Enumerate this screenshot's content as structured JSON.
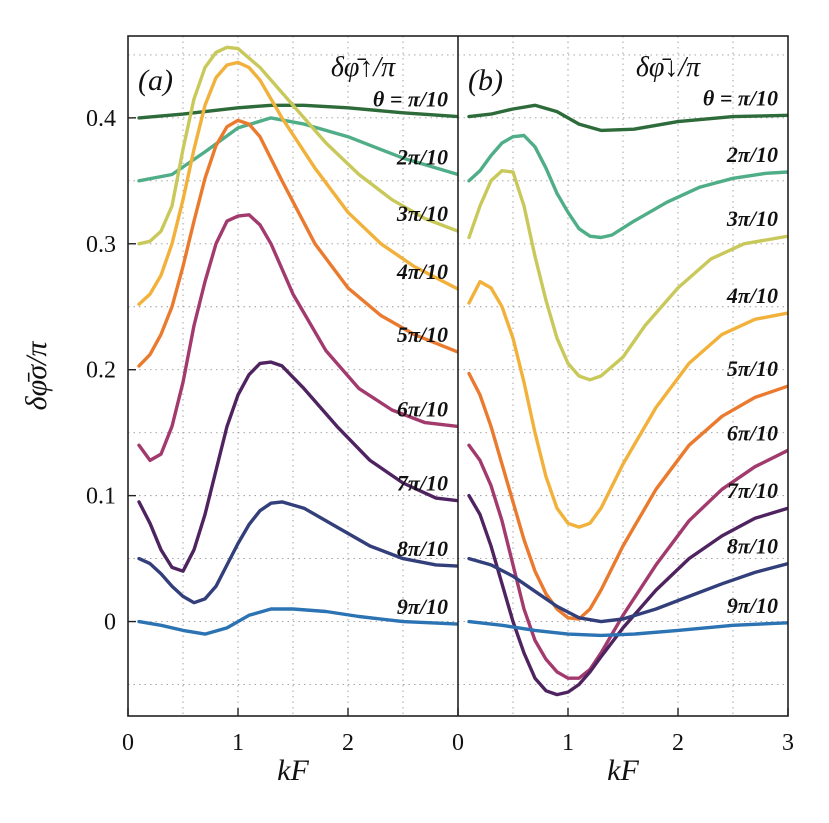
{
  "chart_data": [
    {
      "panel": "(a)",
      "type": "line",
      "title": "δφ̄↑/π",
      "xlabel": "kF",
      "ylabel": "δφ̄σ/π",
      "xlim": [
        0,
        3
      ],
      "ylim": [
        -0.075,
        0.465
      ],
      "xticks": [
        "0",
        "1",
        "2"
      ],
      "yticks": [
        "0",
        "0.1",
        "0.2",
        "0.3",
        "0.4"
      ],
      "grid": true,
      "series": [
        {
          "name": "θ = π/10",
          "color": "#2e6b3a",
          "x": [
            0.1,
            0.5,
            1.0,
            1.3,
            1.6,
            2.0,
            2.5,
            3.0
          ],
          "y": [
            0.4,
            0.403,
            0.408,
            0.41,
            0.41,
            0.408,
            0.404,
            0.401
          ]
        },
        {
          "name": "2π/10",
          "color": "#4fae87",
          "x": [
            0.1,
            0.4,
            0.7,
            1.0,
            1.3,
            1.6,
            2.0,
            2.5,
            3.0
          ],
          "y": [
            0.35,
            0.355,
            0.373,
            0.392,
            0.4,
            0.395,
            0.385,
            0.368,
            0.355
          ]
        },
        {
          "name": "3π/10",
          "color": "#c9c85a",
          "x": [
            0.1,
            0.2,
            0.3,
            0.4,
            0.5,
            0.6,
            0.7,
            0.8,
            0.9,
            1.0,
            1.2,
            1.5,
            1.8,
            2.1,
            2.4,
            2.7,
            3.0
          ],
          "y": [
            0.3,
            0.302,
            0.31,
            0.33,
            0.375,
            0.415,
            0.44,
            0.452,
            0.456,
            0.455,
            0.44,
            0.41,
            0.38,
            0.355,
            0.335,
            0.32,
            0.31
          ]
        },
        {
          "name": "4π/10",
          "color": "#f1b13a",
          "x": [
            0.1,
            0.2,
            0.3,
            0.4,
            0.5,
            0.6,
            0.7,
            0.8,
            0.9,
            1.0,
            1.1,
            1.2,
            1.4,
            1.7,
            2.0,
            2.3,
            2.6,
            3.0
          ],
          "y": [
            0.252,
            0.26,
            0.275,
            0.3,
            0.335,
            0.375,
            0.41,
            0.432,
            0.442,
            0.444,
            0.44,
            0.43,
            0.4,
            0.36,
            0.325,
            0.3,
            0.282,
            0.264
          ]
        },
        {
          "name": "5π/10",
          "color": "#ea7a2e",
          "x": [
            0.1,
            0.2,
            0.3,
            0.4,
            0.5,
            0.6,
            0.7,
            0.8,
            0.9,
            1.0,
            1.1,
            1.2,
            1.4,
            1.7,
            2.0,
            2.3,
            2.6,
            3.0
          ],
          "y": [
            0.203,
            0.212,
            0.228,
            0.25,
            0.282,
            0.318,
            0.352,
            0.378,
            0.393,
            0.398,
            0.395,
            0.385,
            0.35,
            0.3,
            0.265,
            0.243,
            0.228,
            0.214
          ]
        },
        {
          "name": "6π/10",
          "color": "#a23a6e",
          "x": [
            0.1,
            0.2,
            0.3,
            0.4,
            0.5,
            0.6,
            0.7,
            0.8,
            0.9,
            1.0,
            1.1,
            1.2,
            1.3,
            1.5,
            1.8,
            2.1,
            2.4,
            2.7,
            3.0
          ],
          "y": [
            0.14,
            0.128,
            0.133,
            0.155,
            0.19,
            0.235,
            0.27,
            0.3,
            0.318,
            0.322,
            0.323,
            0.315,
            0.3,
            0.26,
            0.215,
            0.185,
            0.168,
            0.158,
            0.155
          ]
        },
        {
          "name": "7π/10",
          "color": "#4f2360",
          "x": [
            0.1,
            0.2,
            0.3,
            0.4,
            0.5,
            0.6,
            0.7,
            0.8,
            0.9,
            1.0,
            1.1,
            1.2,
            1.3,
            1.4,
            1.6,
            1.9,
            2.2,
            2.5,
            2.8,
            3.0
          ],
          "y": [
            0.095,
            0.078,
            0.057,
            0.043,
            0.04,
            0.057,
            0.085,
            0.12,
            0.155,
            0.18,
            0.196,
            0.205,
            0.206,
            0.203,
            0.185,
            0.155,
            0.128,
            0.11,
            0.098,
            0.096
          ]
        },
        {
          "name": "8π/10",
          "color": "#323f7b",
          "x": [
            0.1,
            0.2,
            0.3,
            0.4,
            0.5,
            0.6,
            0.7,
            0.8,
            0.9,
            1.0,
            1.1,
            1.2,
            1.3,
            1.4,
            1.6,
            1.9,
            2.2,
            2.5,
            2.8,
            3.0
          ],
          "y": [
            0.05,
            0.046,
            0.038,
            0.028,
            0.02,
            0.015,
            0.018,
            0.028,
            0.045,
            0.062,
            0.077,
            0.088,
            0.094,
            0.095,
            0.09,
            0.075,
            0.06,
            0.05,
            0.045,
            0.044
          ]
        },
        {
          "name": "9π/10",
          "color": "#2b73b2",
          "x": [
            0.1,
            0.3,
            0.5,
            0.7,
            0.9,
            1.1,
            1.3,
            1.5,
            1.8,
            2.1,
            2.5,
            3.0
          ],
          "y": [
            0.0,
            -0.003,
            -0.007,
            -0.01,
            -0.005,
            0.005,
            0.01,
            0.01,
            0.008,
            0.004,
            0.0,
            -0.002
          ]
        }
      ]
    },
    {
      "panel": "(b)",
      "type": "line",
      "title": "δφ̄↓/π",
      "xlabel": "kF",
      "ylabel": "",
      "xlim": [
        0,
        3
      ],
      "ylim": [
        -0.075,
        0.465
      ],
      "xticks": [
        "0",
        "1",
        "2",
        "3"
      ],
      "grid": true,
      "series": [
        {
          "name": "θ = π/10",
          "color": "#2e6b3a",
          "x": [
            0.1,
            0.3,
            0.5,
            0.7,
            0.9,
            1.1,
            1.3,
            1.6,
            2.0,
            2.5,
            3.0
          ],
          "y": [
            0.401,
            0.403,
            0.407,
            0.41,
            0.405,
            0.395,
            0.39,
            0.391,
            0.397,
            0.401,
            0.402
          ]
        },
        {
          "name": "2π/10",
          "color": "#4fae87",
          "x": [
            0.1,
            0.2,
            0.3,
            0.4,
            0.5,
            0.6,
            0.7,
            0.8,
            0.9,
            1.0,
            1.1,
            1.2,
            1.3,
            1.4,
            1.6,
            1.9,
            2.2,
            2.5,
            2.8,
            3.0
          ],
          "y": [
            0.35,
            0.358,
            0.37,
            0.38,
            0.385,
            0.386,
            0.377,
            0.36,
            0.34,
            0.325,
            0.312,
            0.306,
            0.305,
            0.307,
            0.318,
            0.333,
            0.345,
            0.352,
            0.356,
            0.357
          ]
        },
        {
          "name": "3π/10",
          "color": "#c9c85a",
          "x": [
            0.1,
            0.2,
            0.3,
            0.4,
            0.5,
            0.6,
            0.7,
            0.8,
            0.9,
            1.0,
            1.1,
            1.2,
            1.3,
            1.5,
            1.7,
            2.0,
            2.3,
            2.6,
            3.0
          ],
          "y": [
            0.305,
            0.33,
            0.35,
            0.358,
            0.357,
            0.33,
            0.29,
            0.255,
            0.225,
            0.205,
            0.195,
            0.192,
            0.195,
            0.21,
            0.235,
            0.265,
            0.288,
            0.3,
            0.306
          ]
        },
        {
          "name": "4π/10",
          "color": "#f1b13a",
          "x": [
            0.1,
            0.2,
            0.3,
            0.4,
            0.5,
            0.6,
            0.7,
            0.8,
            0.9,
            1.0,
            1.1,
            1.2,
            1.3,
            1.5,
            1.8,
            2.1,
            2.4,
            2.7,
            3.0
          ],
          "y": [
            0.253,
            0.27,
            0.265,
            0.25,
            0.225,
            0.19,
            0.15,
            0.115,
            0.09,
            0.078,
            0.075,
            0.078,
            0.09,
            0.125,
            0.17,
            0.205,
            0.228,
            0.24,
            0.245
          ]
        },
        {
          "name": "5π/10",
          "color": "#ea7a2e",
          "x": [
            0.1,
            0.2,
            0.3,
            0.4,
            0.5,
            0.6,
            0.7,
            0.8,
            0.9,
            1.0,
            1.1,
            1.2,
            1.3,
            1.5,
            1.8,
            2.1,
            2.4,
            2.7,
            3.0
          ],
          "y": [
            0.197,
            0.18,
            0.155,
            0.125,
            0.095,
            0.065,
            0.04,
            0.022,
            0.01,
            0.003,
            0.002,
            0.01,
            0.025,
            0.06,
            0.105,
            0.14,
            0.163,
            0.178,
            0.187
          ]
        },
        {
          "name": "6π/10",
          "color": "#a23a6e",
          "x": [
            0.1,
            0.2,
            0.3,
            0.4,
            0.5,
            0.6,
            0.7,
            0.8,
            0.9,
            1.0,
            1.1,
            1.2,
            1.3,
            1.5,
            1.8,
            2.1,
            2.4,
            2.7,
            3.0
          ],
          "y": [
            0.14,
            0.128,
            0.108,
            0.08,
            0.045,
            0.01,
            -0.015,
            -0.03,
            -0.04,
            -0.045,
            -0.045,
            -0.038,
            -0.025,
            0.005,
            0.045,
            0.08,
            0.105,
            0.123,
            0.136
          ]
        },
        {
          "name": "7π/10",
          "color": "#4f2360",
          "x": [
            0.1,
            0.2,
            0.3,
            0.4,
            0.5,
            0.6,
            0.7,
            0.8,
            0.9,
            1.0,
            1.1,
            1.2,
            1.3,
            1.5,
            1.8,
            2.1,
            2.4,
            2.7,
            3.0
          ],
          "y": [
            0.1,
            0.085,
            0.06,
            0.03,
            0.0,
            -0.025,
            -0.045,
            -0.055,
            -0.058,
            -0.056,
            -0.05,
            -0.04,
            -0.028,
            -0.005,
            0.025,
            0.05,
            0.068,
            0.082,
            0.09
          ]
        },
        {
          "name": "8π/10",
          "color": "#323f7b",
          "x": [
            0.1,
            0.3,
            0.5,
            0.7,
            0.9,
            1.1,
            1.3,
            1.5,
            1.8,
            2.1,
            2.4,
            2.7,
            3.0
          ],
          "y": [
            0.05,
            0.045,
            0.036,
            0.024,
            0.012,
            0.003,
            0.0,
            0.002,
            0.01,
            0.02,
            0.03,
            0.039,
            0.046
          ]
        },
        {
          "name": "9π/10",
          "color": "#2b73b2",
          "x": [
            0.1,
            0.4,
            0.7,
            1.0,
            1.3,
            1.6,
            2.0,
            2.5,
            3.0
          ],
          "y": [
            0.0,
            -0.003,
            -0.007,
            -0.01,
            -0.011,
            -0.01,
            -0.007,
            -0.003,
            -0.001
          ]
        }
      ]
    }
  ]
}
